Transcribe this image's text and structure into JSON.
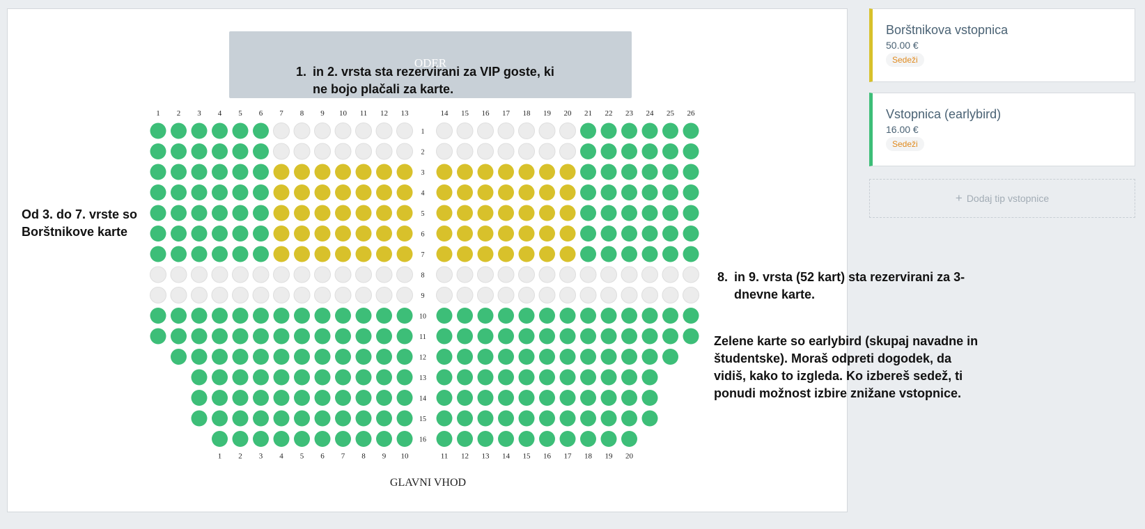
{
  "stage": {
    "label": "ODER"
  },
  "entrance": {
    "label": "GLAVNI VHOD"
  },
  "colors": {
    "green": "#3dbe78",
    "yellow": "#d8c12b",
    "empty": "#ececec",
    "empty_stroke": "#dedede",
    "borstnik_accent": "#d8c12b",
    "earlybird_accent": "#3dbe78"
  },
  "top_column_numbers": [
    "1",
    "2",
    "3",
    "4",
    "5",
    "6",
    "7",
    "8",
    "9",
    "10",
    "11",
    "12",
    "13",
    "14",
    "15",
    "16",
    "17",
    "18",
    "19",
    "20",
    "21",
    "22",
    "23",
    "24",
    "25",
    "26"
  ],
  "bottom_column_numbers": [
    "1",
    "2",
    "3",
    "4",
    "5",
    "6",
    "7",
    "8",
    "9",
    "10",
    "11",
    "12",
    "13",
    "14",
    "15",
    "16",
    "17",
    "18",
    "19",
    "20"
  ],
  "rows": [
    {
      "label": "1",
      "left": "GGGGGGEEEEEEE",
      "right": "EEEEEEEGGGGGG"
    },
    {
      "label": "2",
      "left": "GGGGGGEEEEEEE",
      "right": "EEEEEEEGGGGGG"
    },
    {
      "label": "3",
      "left": "GGGGGGYYYYYYY",
      "right": "YYYYYYYGGGGGG"
    },
    {
      "label": "4",
      "left": "GGGGGGYYYYYYY",
      "right": "YYYYYYYGGGGGG"
    },
    {
      "label": "5",
      "left": "GGGGGGYYYYYYY",
      "right": "YYYYYYYGGGGGG"
    },
    {
      "label": "6",
      "left": "GGGGGGYYYYYYY",
      "right": "YYYYYYYGGGGGG"
    },
    {
      "label": "7",
      "left": "GGGGGGYYYYYYY",
      "right": "YYYYYYYGGGGGG"
    },
    {
      "label": "8",
      "left": "EEEEEEEEEEEEE",
      "right": "EEEEEEEEEEEEE"
    },
    {
      "label": "9",
      "left": "EEEEEEEEEEEEE",
      "right": "EEEEEEEEEEEEE"
    },
    {
      "label": "10",
      "left": "GGGGGGGGGGGGG",
      "right": "GGGGGGGGGGGGG"
    },
    {
      "label": "11",
      "left": "GGGGGGGGGGGGG",
      "right": "GGGGGGGGGGGGG"
    },
    {
      "label": "12",
      "left": "GGGGGGGGGGGG",
      "right": "GGGGGGGGGGGG"
    },
    {
      "label": "13",
      "left": "GGGGGGGGGGG",
      "right": "GGGGGGGGGGG"
    },
    {
      "label": "14",
      "left": "GGGGGGGGGGG",
      "right": "GGGGGGGGGGG"
    },
    {
      "label": "15",
      "left": "GGGGGGGGGGG",
      "right": "GGGGGGGGGGG"
    },
    {
      "label": "16",
      "left": "GGGGGGGGGG",
      "right": "GGGGGGGGGG"
    }
  ],
  "annotations": {
    "vip": {
      "num": "1.",
      "text": "in 2. vrsta sta rezervirani za VIP goste, ki ne bojo plačali za karte."
    },
    "borstnik": {
      "text": "Od 3. do 7. vrste so Borštnikove karte"
    },
    "three_day": {
      "num": "8.",
      "text": "in 9. vrsta (52 kart) sta rezervirani za 3-dnevne karte."
    },
    "earlybird": {
      "text": "Zelene karte so earlybird (skupaj navadne in študentske). Moraš odpreti dogodek, da vidiš, kako to izgleda. Ko izbereš sedež, ti ponudi možnost izbire znižane vstopnice."
    }
  },
  "ticket_types": [
    {
      "title": "Borštnikova vstopnica",
      "price": "50.00 €",
      "badge": "Sedeži"
    },
    {
      "title": "Vstopnica (earlybird)",
      "price": "16.00 €",
      "badge": "Sedeži"
    }
  ],
  "add_ticket": {
    "label": "Dodaj tip vstopnice"
  }
}
